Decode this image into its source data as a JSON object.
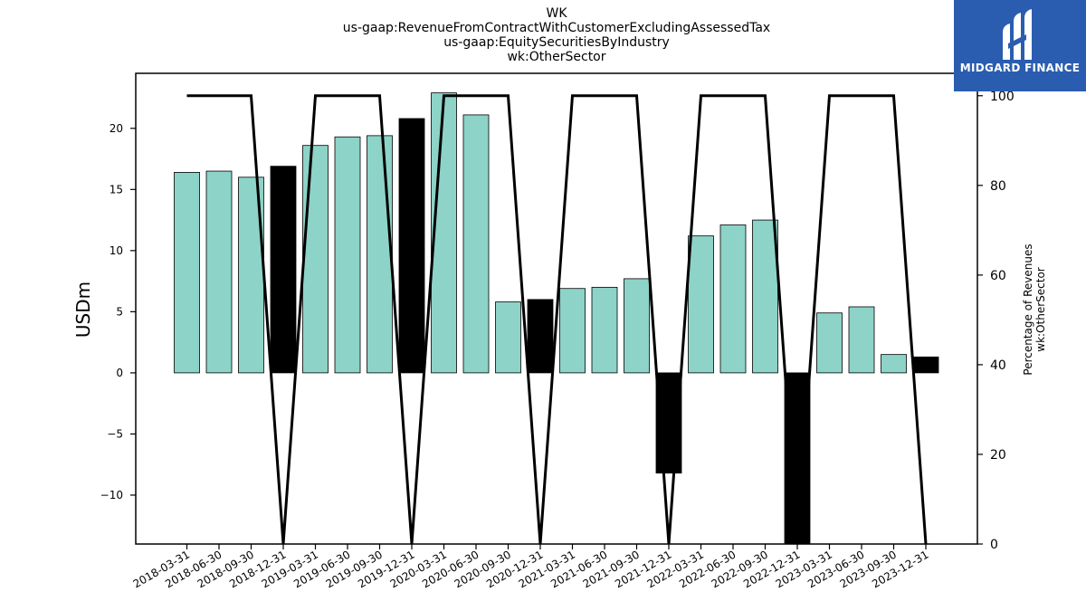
{
  "title_lines": [
    "WK",
    "us-gaap:RevenueFromContractWithCustomerExcludingAssessedTax",
    "us-gaap:EquitySecuritiesByIndustry",
    "wk:OtherSector"
  ],
  "logo": {
    "text": "MIDGARD FINANCE",
    "bg": "#2a5db0",
    "icon": "midgard-logo-icon"
  },
  "chart_data": {
    "type": "bar",
    "ylabel": "USDm",
    "ylabel_right": [
      "Percentage of Revenues",
      "wk:OtherSector"
    ],
    "ylim": [
      -14,
      24.5
    ],
    "ylim_right": [
      0,
      105
    ],
    "yticks": [
      -10,
      -5,
      0,
      5,
      10,
      15,
      20
    ],
    "yticks_right": [
      0,
      20,
      40,
      60,
      80,
      100
    ],
    "categories": [
      "2018-03-31",
      "2018-06-30",
      "2018-09-30",
      "2018-12-31",
      "2019-03-31",
      "2019-06-30",
      "2019-09-30",
      "2019-12-31",
      "2020-03-31",
      "2020-06-30",
      "2020-09-30",
      "2020-12-31",
      "2021-03-31",
      "2021-06-30",
      "2021-09-30",
      "2021-12-31",
      "2022-03-31",
      "2022-06-30",
      "2022-09-30",
      "2022-12-31",
      "2023-03-31",
      "2023-06-30",
      "2023-09-30",
      "2023-12-31"
    ],
    "series": [
      {
        "values": [
          16.4,
          16.5,
          16.0,
          16.9,
          18.6,
          19.3,
          19.4,
          20.8,
          22.9,
          21.1,
          5.8,
          6.0,
          6.9,
          7.0,
          7.7,
          -8.2,
          11.2,
          12.1,
          12.5,
          -15.5,
          4.9,
          5.4,
          1.5,
          1.3
        ],
        "highlight": [
          false,
          false,
          false,
          true,
          false,
          false,
          false,
          true,
          false,
          false,
          false,
          true,
          false,
          false,
          false,
          true,
          false,
          false,
          false,
          true,
          false,
          false,
          false,
          true
        ]
      },
      {
        "axis": "right",
        "type": "line",
        "values": [
          100,
          100,
          100,
          0,
          100,
          100,
          100,
          0,
          100,
          100,
          100,
          0,
          100,
          100,
          100,
          0,
          100,
          100,
          100,
          0,
          100,
          100,
          100,
          0
        ]
      }
    ],
    "colors": {
      "bar": "#8dd3c7",
      "highlight": "#000000",
      "line": "#000000"
    }
  }
}
